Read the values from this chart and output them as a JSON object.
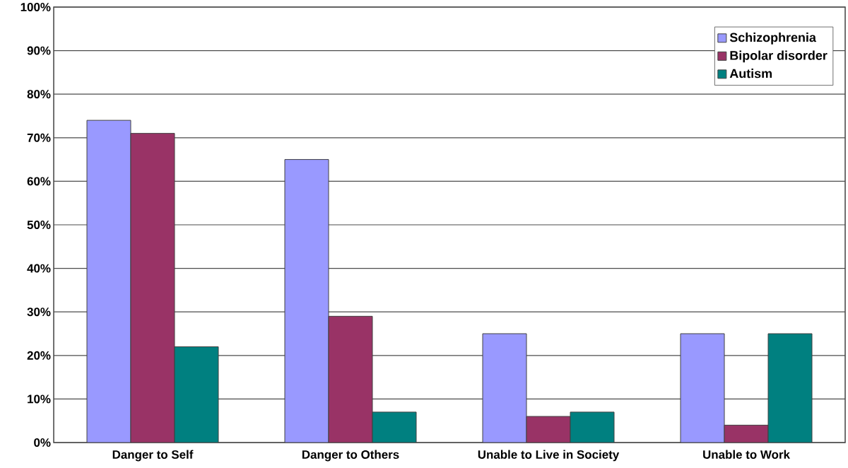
{
  "chart_data": {
    "type": "bar",
    "categories": [
      "Danger to Self",
      "Danger to Others",
      "Unable to Live in Society",
      "Unable to Work"
    ],
    "series": [
      {
        "name": "Schizophrenia",
        "color": "#9999ff",
        "values": [
          74,
          65,
          25,
          25
        ]
      },
      {
        "name": "Bipolar disorder",
        "color": "#993366",
        "values": [
          71,
          29,
          6,
          4
        ]
      },
      {
        "name": "Autism",
        "color": "#008080",
        "values": [
          22,
          7,
          7,
          25
        ]
      }
    ],
    "ylim": [
      0,
      100
    ],
    "yticks": [
      {
        "value": 0,
        "label": "0%"
      },
      {
        "value": 10,
        "label": "10%"
      },
      {
        "value": 20,
        "label": "20%"
      },
      {
        "value": 30,
        "label": "30%"
      },
      {
        "value": 40,
        "label": "40%"
      },
      {
        "value": 50,
        "label": "50%"
      },
      {
        "value": 60,
        "label": "60%"
      },
      {
        "value": 70,
        "label": "70%"
      },
      {
        "value": 80,
        "label": "80%"
      },
      {
        "value": 90,
        "label": "90%"
      },
      {
        "value": 100,
        "label": "100%"
      }
    ],
    "grid": "y",
    "legend": "top right"
  }
}
